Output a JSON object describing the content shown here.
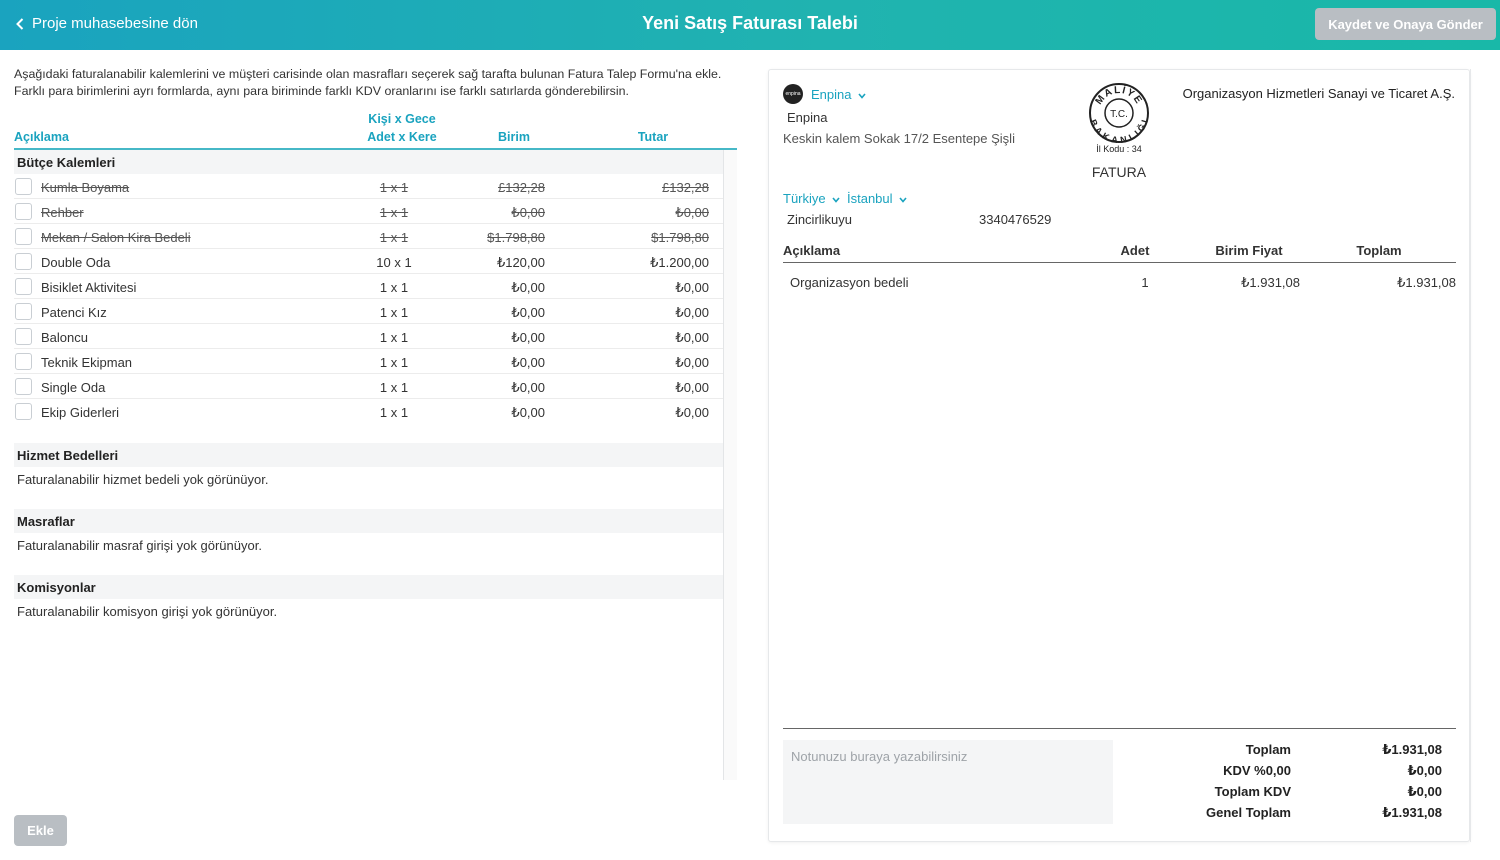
{
  "header": {
    "back_label": "Proje muhasebesine dön",
    "title": "Yeni Satış Faturası Talebi",
    "save_label": "Kaydet ve Onaya Gönder"
  },
  "intro": {
    "line1": "Aşağıdaki faturalanabilir kalemlerini ve müşteri carisinde olan masrafları seçerek sağ tarafta bulunan Fatura Talep Formu'na ekle.",
    "line2": "Farklı para birimlerini ayrı formlarda, aynı para biriminde farklı KDV oranlarını ise farklı satırlarda gönderebilirsin."
  },
  "columns": {
    "description": "Açıklama",
    "qty_line1": "Kişi x Gece",
    "qty_line2": "Adet x Kere",
    "unit": "Birim",
    "total": "Tutar"
  },
  "budget": {
    "title": "Bütçe Kalemleri",
    "items": [
      {
        "desc": "Kumla Boyama",
        "qty": "1 x 1",
        "unit": "£132,28",
        "total": "£132,28",
        "struck": true
      },
      {
        "desc": "Rehber",
        "qty": "1 x 1",
        "unit": "₺0,00",
        "total": "₺0,00",
        "struck": true
      },
      {
        "desc": "Mekan / Salon Kira Bedeli",
        "qty": "1 x 1",
        "unit": "$1.798,80",
        "total": "$1.798,80",
        "struck": true
      },
      {
        "desc": "Double Oda",
        "qty": "10 x 1",
        "unit": "₺120,00",
        "total": "₺1.200,00",
        "struck": false
      },
      {
        "desc": "Bisiklet Aktivitesi",
        "qty": "1 x 1",
        "unit": "₺0,00",
        "total": "₺0,00",
        "struck": false
      },
      {
        "desc": "Patenci Kız",
        "qty": "1 x 1",
        "unit": "₺0,00",
        "total": "₺0,00",
        "struck": false
      },
      {
        "desc": "Baloncu",
        "qty": "1 x 1",
        "unit": "₺0,00",
        "total": "₺0,00",
        "struck": false
      },
      {
        "desc": "Teknik Ekipman",
        "qty": "1 x 1",
        "unit": "₺0,00",
        "total": "₺0,00",
        "struck": false
      },
      {
        "desc": "Single Oda",
        "qty": "1 x 1",
        "unit": "₺0,00",
        "total": "₺0,00",
        "struck": false
      },
      {
        "desc": "Ekip Giderleri",
        "qty": "1 x 1",
        "unit": "₺0,00",
        "total": "₺0,00",
        "struck": false
      }
    ]
  },
  "services": {
    "title": "Hizmet Bedelleri",
    "empty": "Faturalanabilir hizmet bedeli yok görünüyor."
  },
  "expenses": {
    "title": "Masraflar",
    "empty": "Faturalanabilir masraf girişi yok görünüyor."
  },
  "commissions": {
    "title": "Komisyonlar",
    "empty": "Faturalanabilir komisyon girişi yok görünüyor."
  },
  "add_label": "Ekle",
  "invoice": {
    "logo_text": "enpina",
    "company_select": "Enpina",
    "company_name": "Enpina",
    "address": "Keskin kalem Sokak 17/2 Esentepe Şişli",
    "stamp": {
      "top": "MALİYE",
      "bottom": "BAKANLIĞI",
      "center": "T.C.",
      "code": "İl Kodu : 34"
    },
    "doc_type": "FATURA",
    "customer": "Organizasyon Hizmetleri Sanayi ve Ticaret A.Ş.",
    "country": "Türkiye",
    "city": "İstanbul",
    "district": "Zincirlikuyu",
    "tax_no": "3340476529",
    "table_headers": {
      "desc": "Açıklama",
      "qty": "Adet",
      "unit_price": "Birim Fiyat",
      "total": "Toplam"
    },
    "lines": [
      {
        "desc": "Organizasyon bedeli",
        "qty": "1",
        "unit_price": "₺1.931,08",
        "total": "₺1.931,08"
      }
    ],
    "note_placeholder": "Notunuzu buraya yazabilirsiniz",
    "summary": [
      {
        "label": "Toplam",
        "value": "₺1.931,08"
      },
      {
        "label": "KDV %0,00",
        "value": "₺0,00"
      },
      {
        "label": "Toplam KDV",
        "value": "₺0,00"
      },
      {
        "label": "Genel Toplam",
        "value": "₺1.931,08"
      }
    ]
  },
  "colors": {
    "accent": "#1aa3bf",
    "disabled_button": "#b9bec3"
  }
}
